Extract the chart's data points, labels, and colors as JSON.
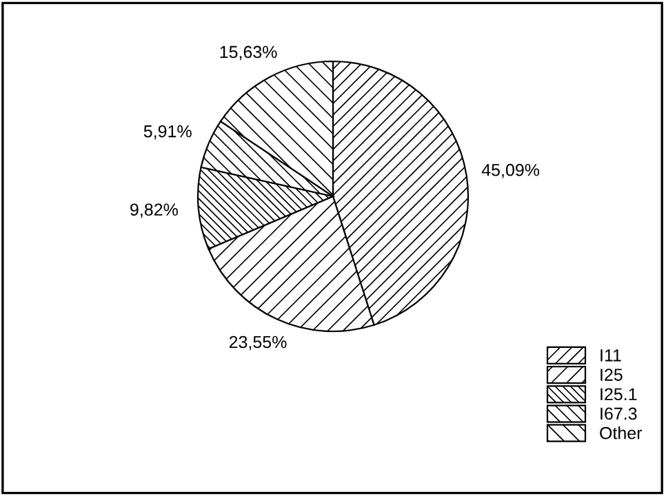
{
  "chart_data": {
    "type": "pie",
    "categories": [
      "I11",
      "I25",
      "I25.1",
      "I67.3",
      "Other"
    ],
    "values": [
      45.09,
      23.55,
      9.82,
      5.91,
      15.63
    ],
    "value_labels": [
      "45,09%",
      "23,55%",
      "9,82%",
      "5,91%",
      "15,63%"
    ],
    "colors": [
      "#000000",
      "#000000",
      "#000000",
      "#000000",
      "#000000"
    ],
    "legend": "bottom right"
  }
}
